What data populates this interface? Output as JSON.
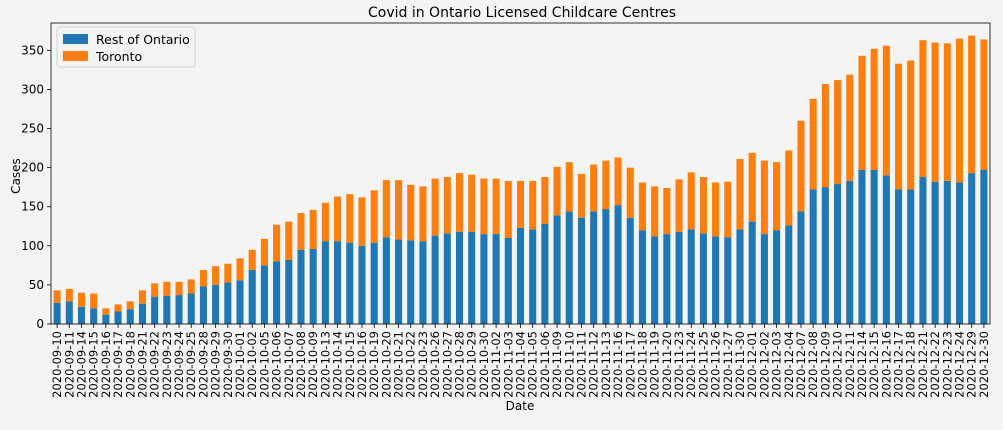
{
  "chart_data": {
    "type": "bar",
    "stacked": true,
    "title": "Covid in Ontario Licensed Childcare Centres",
    "xlabel": "Date",
    "ylabel": "Cases",
    "ylim": [
      0,
      385
    ],
    "yticks": [
      0,
      50,
      100,
      150,
      200,
      250,
      300,
      350
    ],
    "grid": false,
    "legend_position": "top-left",
    "categories": [
      "2020-09-10",
      "2020-09-11",
      "2020-09-14",
      "2020-09-15",
      "2020-09-16",
      "2020-09-17",
      "2020-09-18",
      "2020-09-21",
      "2020-09-22",
      "2020-09-23",
      "2020-09-24",
      "2020-09-25",
      "2020-09-28",
      "2020-09-29",
      "2020-09-30",
      "2020-10-01",
      "2020-10-02",
      "2020-10-05",
      "2020-10-06",
      "2020-10-07",
      "2020-10-08",
      "2020-10-09",
      "2020-10-13",
      "2020-10-14",
      "2020-10-15",
      "2020-10-16",
      "2020-10-19",
      "2020-10-20",
      "2020-10-21",
      "2020-10-22",
      "2020-10-23",
      "2020-10-26",
      "2020-10-27",
      "2020-10-28",
      "2020-10-29",
      "2020-10-30",
      "2020-11-02",
      "2020-11-03",
      "2020-11-04",
      "2020-11-05",
      "2020-11-06",
      "2020-11-09",
      "2020-11-10",
      "2020-11-11",
      "2020-11-12",
      "2020-11-13",
      "2020-11-16",
      "2020-11-17",
      "2020-11-18",
      "2020-11-19",
      "2020-11-20",
      "2020-11-23",
      "2020-11-24",
      "2020-11-25",
      "2020-11-26",
      "2020-11-27",
      "2020-11-30",
      "2020-12-01",
      "2020-12-02",
      "2020-12-03",
      "2020-12-04",
      "2020-12-07",
      "2020-12-08",
      "2020-12-09",
      "2020-12-10",
      "2020-12-11",
      "2020-12-14",
      "2020-12-15",
      "2020-12-16",
      "2020-12-17",
      "2020-12-18",
      "2020-12-21",
      "2020-12-22",
      "2020-12-23",
      "2020-12-24",
      "2020-12-29",
      "2020-12-30"
    ],
    "xtick_labels": [
      "2020-09-10",
      "2020-09-11",
      "2020-09-14",
      "2020-09-15",
      "2020-09-16",
      "2020-09-17",
      "2020-09-18",
      "2020-09-21",
      "2020-09-22",
      "2020-09-23",
      "2020-09-24",
      "2020-09-25",
      "2020-09-28",
      "2020-09-29",
      "2020-09-30",
      "2020-10-01",
      "2020-10-02",
      "2020-10-05",
      "2020-10-06",
      "2020-10-07",
      "2020-10-08",
      "2020-10-09",
      "2020-10-13",
      "2020-10-14",
      "2020-10-15",
      "2020-10-16",
      "2020-10-19",
      "2020-10-20",
      "2020-10-21",
      "2020-10-22",
      "2020-10-23",
      "2020-10-26",
      "2020-10-27",
      "2020-10-28",
      "2020-10-29",
      "2020-10-30",
      "2020-11-02",
      "2020-11-03",
      "2020-11-04",
      "2020-11-05",
      "2020-11-06",
      "2020-11-09",
      "2020-11-10",
      "2020-11-11",
      "2020-11-12",
      "2020-11-13",
      "2020-11-16",
      "2020-11-17",
      "2020-11-18",
      "2020-11-19",
      "2020-11-20",
      "2020-11-23",
      "2020-11-24",
      "2020-11-25",
      "2020-11-26",
      "2020-11-27",
      "2020-11-30",
      "2020-12-01",
      "2020-12-02",
      "2020-12-03",
      "2020-12-04",
      "2020-12-07",
      "2020-12-08",
      "2020-12-09",
      "2020-12-10",
      "2020-12-11",
      "2020-12-14",
      "2020-12-15",
      "2020-12-16",
      "2020-12-17",
      "2020-12-18",
      "2020-12-21",
      "2020-12-22",
      "2020-12-23",
      "2020-12-24",
      "2020-12-29",
      "2020-12-30"
    ],
    "series": [
      {
        "name": "Rest of Ontario",
        "color": "#1f77b4",
        "values": [
          27,
          29,
          22,
          20,
          12,
          16,
          19,
          26,
          35,
          36,
          37,
          39,
          48,
          50,
          53,
          56,
          69,
          75,
          80,
          82,
          95,
          96,
          106,
          106,
          104,
          100,
          104,
          111,
          108,
          107,
          106,
          113,
          116,
          118,
          118,
          115,
          115,
          110,
          123,
          121,
          128,
          139,
          144,
          136,
          144,
          147,
          152,
          136,
          120,
          112,
          115,
          118,
          121,
          116,
          112,
          111,
          121,
          131,
          115,
          120,
          126,
          144,
          172,
          175,
          179,
          183,
          197,
          197,
          190,
          172,
          172,
          188,
          182,
          183,
          181,
          193,
          197
        ]
      },
      {
        "name": "Toronto",
        "color": "#ff7f0e",
        "values": [
          16,
          16,
          18,
          19,
          8,
          9,
          10,
          17,
          17,
          18,
          17,
          18,
          21,
          24,
          24,
          28,
          26,
          34,
          47,
          49,
          47,
          50,
          49,
          57,
          62,
          62,
          67,
          73,
          76,
          71,
          70,
          73,
          72,
          75,
          73,
          71,
          71,
          73,
          60,
          62,
          60,
          62,
          63,
          56,
          60,
          62,
          61,
          64,
          61,
          64,
          59,
          67,
          73,
          72,
          69,
          71,
          90,
          88,
          94,
          87,
          96,
          116,
          116,
          132,
          133,
          136,
          146,
          155,
          166,
          161,
          165,
          175,
          178,
          176,
          184,
          176,
          167
        ]
      }
    ]
  }
}
